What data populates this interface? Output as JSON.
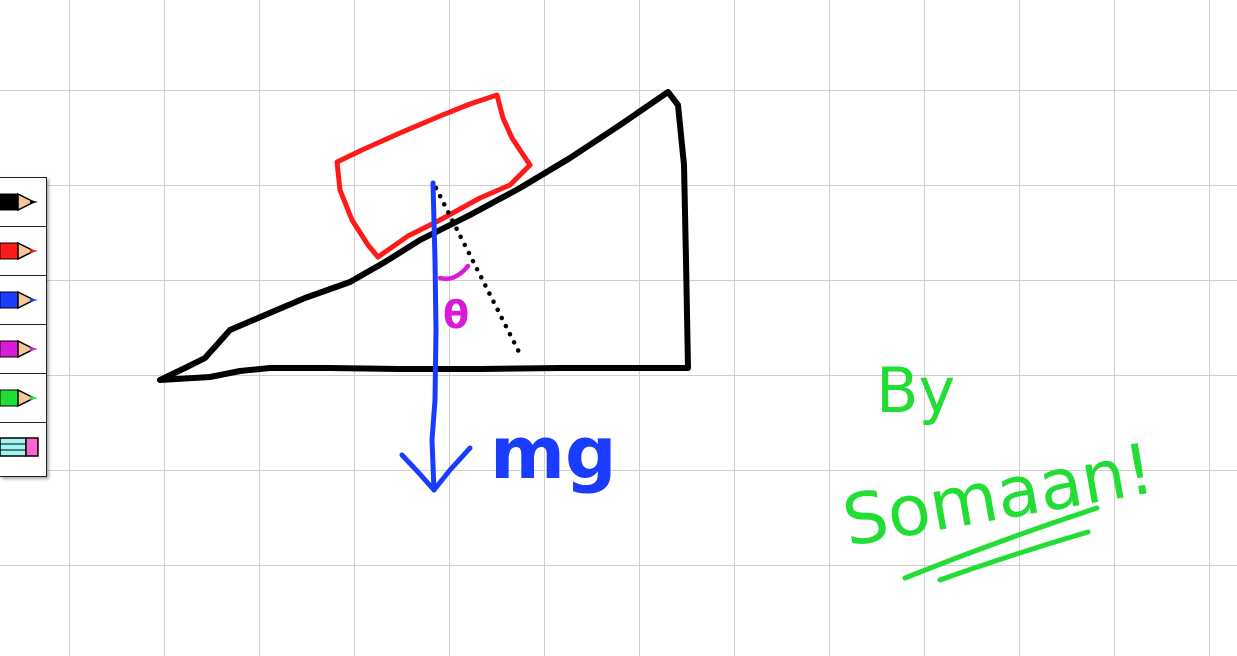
{
  "toolbar": {
    "tools": [
      {
        "name": "black-pencil",
        "color": "#000000"
      },
      {
        "name": "red-pencil",
        "color": "#ff1a1a"
      },
      {
        "name": "blue-pencil",
        "color": "#1a3cff"
      },
      {
        "name": "magenta-pencil",
        "color": "#d81bd8"
      },
      {
        "name": "green-pencil",
        "color": "#22dd33"
      },
      {
        "name": "eraser",
        "color": "#9ff5f0"
      }
    ]
  },
  "drawing": {
    "force_label": "mg",
    "angle_label": "θ",
    "signature_by": "By",
    "signature_name": "Somaan!"
  },
  "colors": {
    "incline": "#000000",
    "block": "#ff1a1a",
    "force": "#1a3cff",
    "angle": "#d81bd8",
    "signature": "#22dd33"
  }
}
